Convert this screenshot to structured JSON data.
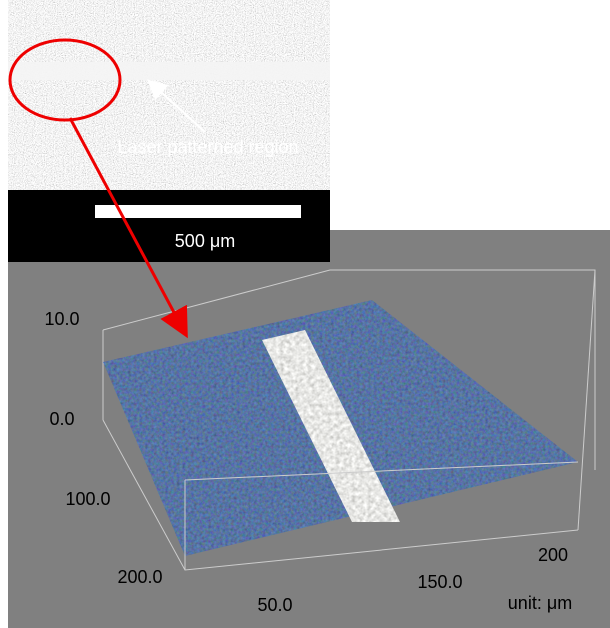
{
  "sem_image": {
    "annotation": "Laser patterned region",
    "scale_bar_label": "500 μm"
  },
  "surface_plot": {
    "z_axis_labels": [
      "10.0",
      "0.0"
    ],
    "y_axis_labels": [
      "100.0",
      "200.0"
    ],
    "x_axis_labels": [
      "50.0",
      "150.0",
      "200"
    ],
    "unit_label": "unit: μm"
  }
}
